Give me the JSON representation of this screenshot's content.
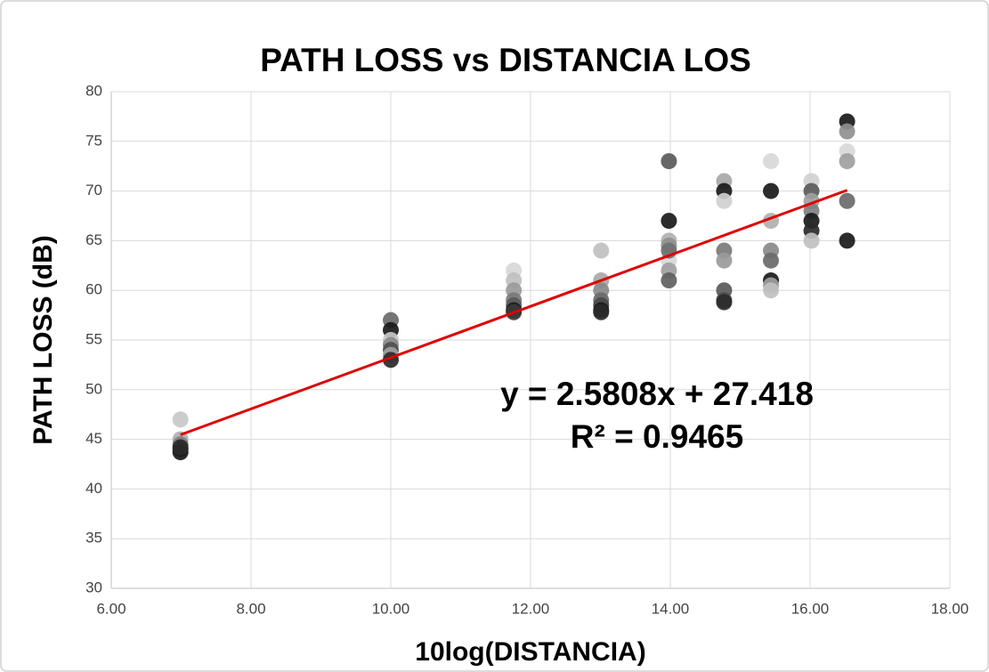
{
  "chart_data": {
    "type": "scatter",
    "title": "PATH LOSS vs DISTANCIA LOS",
    "x_label": "10log(DISTANCIA)",
    "y_label": "PATH LOSS (dB)",
    "x": [
      6.99,
      6.99,
      6.99,
      6.99,
      6.99,
      6.99,
      10,
      10,
      10,
      10,
      10,
      10,
      10,
      11.76,
      11.76,
      11.76,
      11.76,
      11.76,
      11.76,
      11.76,
      13.01,
      13.01,
      13.01,
      13.01,
      13.01,
      13.01,
      13.01,
      13.98,
      13.98,
      13.98,
      13.98,
      13.98,
      13.98,
      13.98,
      13.98,
      14.77,
      14.77,
      14.77,
      14.77,
      14.77,
      14.77,
      14.77,
      14.77,
      15.44,
      15.44,
      15.44,
      15.44,
      15.44,
      15.44,
      15.44,
      15.44,
      16.02,
      16.02,
      16.02,
      16.02,
      16.02,
      16.02,
      16.02,
      16.53,
      16.53,
      16.53,
      16.53,
      16.53,
      16.53
    ],
    "y": [
      47,
      45,
      44.5,
      44,
      43.7,
      44.2,
      57,
      56,
      55,
      54.5,
      54,
      53.5,
      53,
      62,
      61,
      60,
      59,
      58.5,
      58,
      57.8,
      64,
      61,
      60,
      59,
      58.5,
      58,
      57.8,
      73,
      67,
      65,
      64.5,
      63,
      62,
      61,
      64,
      71,
      70,
      69,
      64,
      63,
      60,
      59,
      58.8,
      73,
      70,
      67,
      64,
      63,
      61,
      60.5,
      60,
      71,
      70,
      69,
      68,
      67,
      66,
      65,
      77,
      76,
      74,
      73,
      69,
      65
    ],
    "colors": [
      "#c8c8c8",
      "#b0b0b0",
      "#808080",
      "#404040",
      "#1a1a1a",
      "#2a2a2a",
      "#6a6a6a",
      "#1a1a1a",
      "#c8c8c8",
      "#8a8a8a",
      "#505050",
      "#a0a0a0",
      "#2a2a2a",
      "#d8d8d8",
      "#c0c0c0",
      "#9a9a9a",
      "#7a7a7a",
      "#5a5a5a",
      "#1a1a1a",
      "#3a3a3a",
      "#c0c0c0",
      "#a8a8a8",
      "#8a8a8a",
      "#6a6a6a",
      "#4a4a4a",
      "#1a1a1a",
      "#2a2a2a",
      "#5a5a5a",
      "#1a1a1a",
      "#b0b0b0",
      "#909090",
      "#d8d8d8",
      "#a0a0a0",
      "#606060",
      "#707070",
      "#a8a8a8",
      "#1a1a1a",
      "#d0d0d0",
      "#7a7a7a",
      "#9a9a9a",
      "#5a5a5a",
      "#4a4a4a",
      "#2a2a2a",
      "#d8d8d8",
      "#1a1a1a",
      "#b0b0b0",
      "#8a8a8a",
      "#6a6a6a",
      "#1a1a1a",
      "#a0a0a0",
      "#c0c0c0",
      "#d0d0d0",
      "#5a5a5a",
      "#a0a0a0",
      "#808080",
      "#1a1a1a",
      "#2a2a2a",
      "#c0c0c0",
      "#1a1a1a",
      "#909090",
      "#d8d8d8",
      "#a0a0a0",
      "#6a6a6a",
      "#1a1a1a"
    ],
    "trendline": {
      "slope": 2.5808,
      "intercept": 27.418,
      "color": "#e00000",
      "x_range": [
        6.99,
        16.53
      ]
    },
    "annotations": [
      "y = 2.5808x + 27.418",
      "R² = 0.9465"
    ],
    "xlim": [
      6,
      18
    ],
    "xticks": [
      {
        "value": 6,
        "label": "6.00"
      },
      {
        "value": 8,
        "label": "8.00"
      },
      {
        "value": 10,
        "label": "10.00"
      },
      {
        "value": 12,
        "label": "12.00"
      },
      {
        "value": 14,
        "label": "14.00"
      },
      {
        "value": 16,
        "label": "16.00"
      },
      {
        "value": 18,
        "label": "18.00"
      }
    ],
    "ylim": [
      30,
      80
    ],
    "yticks": [
      30,
      35,
      40,
      45,
      50,
      55,
      60,
      65,
      70,
      75,
      80
    ],
    "grid": true
  }
}
